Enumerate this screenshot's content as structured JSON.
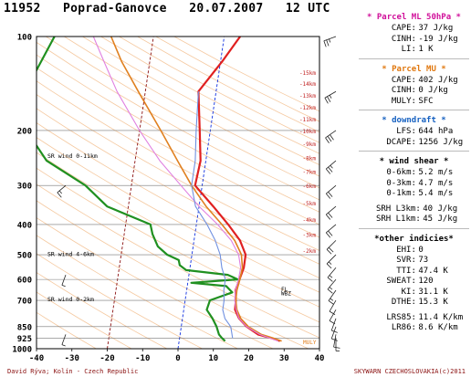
{
  "header": {
    "station_id": "11952",
    "station_name": "Poprad-Ganovce",
    "date": "20.07.2007",
    "time": "12 UTC"
  },
  "colors": {
    "temperature": "#e02020",
    "dewpoint": "#209020",
    "parcel_ml": "#e080e0",
    "parcel_mu": "#e08020",
    "virtual": "#7090e0",
    "isotherm_zero": "#1030e0",
    "isotherm_minus20": "#8b1010",
    "dry_adiabat": "#f5c9a0",
    "background": "#ffffff"
  },
  "chart_data": {
    "type": "line",
    "title": "",
    "xlabel": "",
    "ylabel": "",
    "x_ticks": [
      -40,
      -30,
      -20,
      -10,
      0,
      10,
      20,
      30,
      40
    ],
    "xlim": [
      -40,
      40
    ],
    "y_scale": "log",
    "ylim": [
      1000,
      100
    ],
    "pressure_ticks": [
      100,
      200,
      300,
      400,
      500,
      600,
      700,
      850,
      925,
      1000
    ],
    "isotherm_labels": [
      "-15km",
      "-14km",
      "-13km",
      "-12km",
      "-11km",
      "-10km",
      "-9km",
      "-8km",
      "-7km",
      "-6km",
      "-5km",
      "-4km",
      "-3km",
      "-2km"
    ],
    "isotherm_label_temps": [
      -15,
      -14,
      -13,
      -12,
      -11,
      -10,
      -9,
      -8,
      -7,
      -6,
      -5,
      -4,
      -3,
      -2
    ],
    "skew_note": "skewed",
    "series": [
      {
        "name": "",
        "key": "temperature",
        "points": [
          [
            945,
            28.5
          ],
          [
            925,
            26
          ],
          [
            900,
            22
          ],
          [
            850,
            18.5
          ],
          [
            800,
            16
          ],
          [
            750,
            14.5
          ],
          [
            700,
            14.3
          ],
          [
            650,
            13.8
          ],
          [
            600,
            14.5
          ],
          [
            550,
            15.2
          ],
          [
            500,
            15.2
          ],
          [
            450,
            13
          ],
          [
            400,
            9
          ],
          [
            350,
            4
          ],
          [
            300,
            -2
          ],
          [
            250,
            -1.5
          ],
          [
            200,
            -3
          ],
          [
            150,
            -5
          ],
          [
            120,
            0.5
          ],
          [
            100,
            4.5
          ]
        ]
      },
      {
        "name": "",
        "key": "dewpoint",
        "points": [
          [
            945,
            13
          ],
          [
            925,
            12
          ],
          [
            900,
            11
          ],
          [
            850,
            10
          ],
          [
            800,
            8.5
          ],
          [
            750,
            6.5
          ],
          [
            700,
            7
          ],
          [
            660,
            13
          ],
          [
            630,
            11
          ],
          [
            615,
            1
          ],
          [
            600,
            14
          ],
          [
            580,
            11
          ],
          [
            560,
            -1
          ],
          [
            540,
            -3
          ],
          [
            520,
            -3.5
          ],
          [
            500,
            -7
          ],
          [
            470,
            -10
          ],
          [
            430,
            -12
          ],
          [
            400,
            -13
          ],
          [
            350,
            -26
          ],
          [
            300,
            -33
          ],
          [
            250,
            -45
          ],
          [
            200,
            -52
          ],
          [
            150,
            -54
          ],
          [
            100,
            -48
          ]
        ]
      },
      {
        "name": "",
        "key": "parcel_mu",
        "points": [
          [
            945,
            29
          ],
          [
            925,
            26.5
          ],
          [
            900,
            23
          ],
          [
            850,
            19
          ],
          [
            800,
            16.5
          ],
          [
            750,
            15
          ],
          [
            700,
            14.3
          ],
          [
            650,
            14.2
          ],
          [
            600,
            14.6
          ],
          [
            550,
            14.8
          ],
          [
            500,
            14
          ],
          [
            450,
            11.5
          ],
          [
            400,
            7.2
          ],
          [
            350,
            2
          ],
          [
            300,
            -3
          ],
          [
            250,
            -8
          ],
          [
            200,
            -14
          ],
          [
            150,
            -22
          ],
          [
            120,
            -28
          ],
          [
            100,
            -32
          ]
        ]
      },
      {
        "name": "",
        "key": "parcel_ml",
        "points": [
          [
            945,
            28
          ],
          [
            925,
            25.5
          ],
          [
            900,
            22.5
          ],
          [
            850,
            18.5
          ],
          [
            800,
            16
          ],
          [
            750,
            14.8
          ],
          [
            700,
            14
          ],
          [
            650,
            13.8
          ],
          [
            600,
            14.2
          ],
          [
            550,
            14.3
          ],
          [
            500,
            13.2
          ],
          [
            450,
            10.5
          ],
          [
            400,
            6
          ],
          [
            350,
            0
          ],
          [
            300,
            -6
          ],
          [
            250,
            -13
          ],
          [
            200,
            -20
          ],
          [
            150,
            -28
          ],
          [
            120,
            -33
          ],
          [
            100,
            -37
          ]
        ]
      },
      {
        "name": "",
        "key": "virtual",
        "points": [
          [
            925,
            15
          ],
          [
            850,
            14
          ],
          [
            800,
            12
          ],
          [
            750,
            11
          ],
          [
            700,
            11
          ],
          [
            650,
            10.5
          ],
          [
            600,
            10.5
          ],
          [
            550,
            9
          ],
          [
            500,
            8
          ],
          [
            450,
            6
          ],
          [
            400,
            3
          ],
          [
            350,
            -1
          ],
          [
            300,
            -3
          ],
          [
            250,
            -3
          ],
          [
            200,
            -4
          ],
          [
            150,
            -5
          ]
        ]
      }
    ],
    "wind_barbs": [
      {
        "p": 100,
        "dir": 250,
        "kt": 25
      },
      {
        "p": 150,
        "dir": 240,
        "kt": 25
      },
      {
        "p": 200,
        "dir": 235,
        "kt": 30
      },
      {
        "p": 250,
        "dir": 230,
        "kt": 25
      },
      {
        "p": 300,
        "dir": 230,
        "kt": 20
      },
      {
        "p": 350,
        "dir": 230,
        "kt": 20
      },
      {
        "p": 400,
        "dir": 230,
        "kt": 20
      },
      {
        "p": 450,
        "dir": 225,
        "kt": 20
      },
      {
        "p": 500,
        "dir": 225,
        "kt": 15
      },
      {
        "p": 550,
        "dir": 220,
        "kt": 15
      },
      {
        "p": 600,
        "dir": 220,
        "kt": 15
      },
      {
        "p": 650,
        "dir": 215,
        "kt": 15
      },
      {
        "p": 700,
        "dir": 210,
        "kt": 10
      },
      {
        "p": 750,
        "dir": 210,
        "kt": 10
      },
      {
        "p": 800,
        "dir": 200,
        "kt": 10
      },
      {
        "p": 850,
        "dir": 200,
        "kt": 10
      },
      {
        "p": 900,
        "dir": 190,
        "kt": 10
      },
      {
        "p": 925,
        "dir": 180,
        "kt": 5
      }
    ],
    "hodo_barbs": [
      {
        "p": 300,
        "dir": 230,
        "kt": 15,
        "label": "SR wind 0-11km"
      },
      {
        "p": 580,
        "dir": 200,
        "kt": 5,
        "label": "SR wind 4-6km"
      },
      {
        "p": 900,
        "dir": 200,
        "kt": 5,
        "label": "SR wind 0-2km"
      }
    ],
    "sr_labels": [
      {
        "text": "SR wind 0-11km",
        "p": 245
      },
      {
        "text": "SR wind 4-6km",
        "p": 505
      },
      {
        "text": "SR wind 0-2km",
        "p": 705
      }
    ],
    "level_markers": [
      {
        "text": "FL",
        "p": 645
      },
      {
        "text": "WBZ",
        "p": 665
      },
      {
        "text": "MULY",
        "p": 955
      }
    ]
  },
  "panel": {
    "ml": {
      "title": "* Parcel ML 50hPa *",
      "rows": [
        {
          "label": "CAPE:",
          "value": "37 J/kg"
        },
        {
          "label": "CINH:",
          "value": "-19 J/kg"
        },
        {
          "label": "LI:",
          "value": "1 K"
        }
      ]
    },
    "mu": {
      "title": "* Parcel MU *",
      "rows": [
        {
          "label": "CAPE:",
          "value": "402 J/kg"
        },
        {
          "label": "CINH:",
          "value": "0 J/kg"
        },
        {
          "label": "MULY:",
          "value": "SFC"
        }
      ]
    },
    "dd": {
      "title": "* downdraft *",
      "rows": [
        {
          "label": "LFS:",
          "value": "644 hPa"
        },
        {
          "label": "DCAPE:",
          "value": "1256 J/kg"
        }
      ]
    },
    "ws": {
      "title": "* wind shear *",
      "rows": [
        {
          "label": "0-6km:",
          "value": "5.2 m/s"
        },
        {
          "label": "0-3km:",
          "value": "4.7 m/s"
        },
        {
          "label": "0-1km:",
          "value": "5.4 m/s"
        }
      ],
      "srh": [
        {
          "label": "SRH L3km:",
          "value": "40 J/kg"
        },
        {
          "label": "SRH L1km:",
          "value": "45 J/kg"
        }
      ]
    },
    "oi": {
      "title": "*other indicies*",
      "rows": [
        {
          "label": "EHI:",
          "value": "0"
        },
        {
          "label": "SVR:",
          "value": "73"
        },
        {
          "label": "TTI:",
          "value": "47.4 K"
        },
        {
          "label": "SWEAT:",
          "value": "120"
        },
        {
          "label": "KI:",
          "value": "31.1 K"
        },
        {
          "label": "DTHE:",
          "value": "15.3 K"
        }
      ],
      "lr": [
        {
          "label": "LRS85:",
          "value": "11.4 K/km"
        },
        {
          "label": "LR86:",
          "value": "8.6 K/km"
        }
      ]
    }
  },
  "footer": {
    "left": "David Rýva; Kolín - Czech Republic",
    "right": "SKYWARN CZECHOSLOVAKIA(c)2011"
  }
}
